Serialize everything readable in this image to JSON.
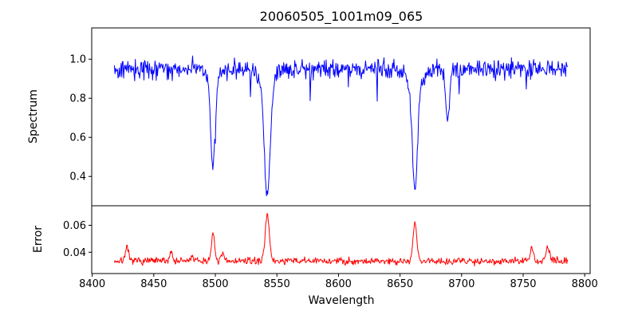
{
  "figure": {
    "background_color": "#ffffff"
  },
  "chart_data": {
    "type": "line",
    "title": "20060505_1001m09_065",
    "xlabel": "Wavelength",
    "xlim": [
      8399.6,
      8804.4
    ],
    "x_start": 8418,
    "x_end": 8786,
    "x_step": 0.5,
    "grid": false,
    "legend": false,
    "x_ticks": [
      {
        "value": 8400,
        "label": "8400"
      },
      {
        "value": 8450,
        "label": "8450"
      },
      {
        "value": 8500,
        "label": "8500"
      },
      {
        "value": 8550,
        "label": "8550"
      },
      {
        "value": 8600,
        "label": "8600"
      },
      {
        "value": 8650,
        "label": "8650"
      },
      {
        "value": 8700,
        "label": "8700"
      },
      {
        "value": 8750,
        "label": "8750"
      },
      {
        "value": 8800,
        "label": "8800"
      }
    ],
    "panels": [
      {
        "ylabel": "Spectrum",
        "color": "#0000ff",
        "ylim": [
          0.25,
          1.16
        ],
        "y_ticks": [
          {
            "value": 0.4,
            "label": "0.4"
          },
          {
            "value": 0.6,
            "label": "0.6"
          },
          {
            "value": 0.8,
            "label": "0.8"
          },
          {
            "value": 1.0,
            "label": "1.0"
          }
        ],
        "continuum": 0.95,
        "noise_amplitude": 0.07,
        "spike_probability": 0.03,
        "spike_depth": 0.15,
        "noise_seed": 42,
        "absorption_lines": [
          {
            "center": 8498.0,
            "depth": 0.51,
            "width": 1.7
          },
          {
            "center": 8542.1,
            "depth": 0.65,
            "width": 2.3
          },
          {
            "center": 8662.1,
            "depth": 0.62,
            "width": 2.1
          },
          {
            "center": 8688.6,
            "depth": 0.26,
            "width": 1.4
          }
        ]
      },
      {
        "ylabel": "Error",
        "color": "#ff0000",
        "ylim": [
          0.0242,
          0.0745
        ],
        "y_ticks": [
          {
            "value": 0.04,
            "label": "0.04"
          },
          {
            "value": 0.06,
            "label": "0.06"
          }
        ],
        "baseline": 0.0335,
        "noise_amplitude": 0.004,
        "noise_seed": 7,
        "error_peaks": [
          {
            "center": 8428,
            "height": 0.01,
            "width": 1.3
          },
          {
            "center": 8464,
            "height": 0.007,
            "width": 1.2
          },
          {
            "center": 8481,
            "height": 0.004,
            "width": 1.0
          },
          {
            "center": 8498.0,
            "height": 0.019,
            "width": 1.4
          },
          {
            "center": 8506,
            "height": 0.005,
            "width": 1.0
          },
          {
            "center": 8542.1,
            "height": 0.036,
            "width": 1.6
          },
          {
            "center": 8662.1,
            "height": 0.028,
            "width": 1.5
          },
          {
            "center": 8757,
            "height": 0.009,
            "width": 1.3
          },
          {
            "center": 8770,
            "height": 0.011,
            "width": 1.3
          }
        ]
      }
    ]
  }
}
